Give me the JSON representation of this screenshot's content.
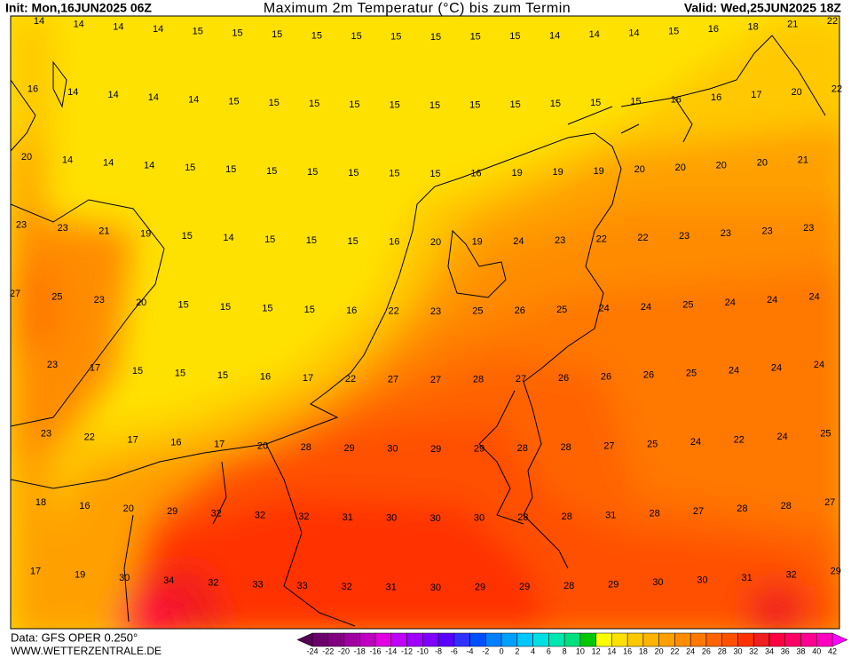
{
  "header": {
    "init": "Init: Mon,16JUN2025 06Z",
    "title": "Maximum 2m Temperatur (°C) bis zum Termin",
    "valid": "Valid: Wed,25JUN2025 18Z"
  },
  "map": {
    "labels": [
      [
        14,
        14,
        14,
        14,
        15,
        15,
        15,
        15,
        15,
        15,
        15,
        15,
        15,
        14,
        14,
        14,
        15,
        16,
        18,
        21,
        22
      ],
      [
        16,
        14,
        14,
        14,
        14,
        15,
        15,
        15,
        15,
        15,
        15,
        15,
        15,
        15,
        15,
        15,
        16,
        16,
        17,
        20,
        22
      ],
      [
        20,
        14,
        14,
        14,
        15,
        15,
        15,
        15,
        15,
        15,
        15,
        16,
        19,
        19,
        19,
        20,
        20,
        20,
        20,
        21
      ],
      [
        23,
        23,
        21,
        19,
        15,
        14,
        15,
        15,
        15,
        16,
        20,
        19,
        24,
        23,
        22,
        22,
        23,
        23,
        23,
        23
      ],
      [
        27,
        25,
        23,
        20,
        15,
        15,
        15,
        15,
        16,
        22,
        23,
        25,
        26,
        25,
        24,
        24,
        25,
        24,
        24,
        24
      ],
      [
        23,
        17,
        15,
        15,
        15,
        16,
        17,
        22,
        27,
        27,
        28,
        27,
        26,
        26,
        26,
        25,
        24,
        24,
        24
      ],
      [
        23,
        22,
        17,
        16,
        17,
        20,
        28,
        29,
        30,
        29,
        29,
        28,
        28,
        27,
        25,
        24,
        22,
        24,
        25
      ],
      [
        18,
        16,
        20,
        29,
        32,
        32,
        32,
        31,
        30,
        30,
        30,
        28,
        28,
        31,
        28,
        27,
        28,
        28,
        27
      ],
      [
        17,
        19,
        30,
        34,
        32,
        33,
        33,
        32,
        31,
        30,
        29,
        29,
        28,
        29,
        30,
        30,
        31,
        32,
        29
      ]
    ]
  },
  "colorbar": {
    "labels": [
      -24,
      -22,
      -20,
      -18,
      -16,
      -14,
      -12,
      -10,
      -8,
      -6,
      -4,
      -2,
      0,
      2,
      4,
      6,
      8,
      10,
      12,
      14,
      16,
      18,
      20,
      22,
      24,
      26,
      28,
      30,
      32,
      34,
      36,
      38,
      40,
      42
    ],
    "colors": [
      "#550055",
      "#6a006a",
      "#80007f",
      "#a000a0",
      "#c000c0",
      "#e000e0",
      "#c000ff",
      "#a000ff",
      "#8000ff",
      "#5a00ff",
      "#3030ff",
      "#0050ff",
      "#0080ff",
      "#00a0ff",
      "#00c8ff",
      "#00e0e0",
      "#00e8b0",
      "#00e080",
      "#00c800",
      "#ffff00",
      "#ffe100",
      "#ffc800",
      "#ffb400",
      "#ffa000",
      "#ff8c00",
      "#ff7800",
      "#ff6400",
      "#ff5000",
      "#ff3200",
      "#f01e1e",
      "#ff0040",
      "#ff0064",
      "#ff0090",
      "#ff00c0",
      "#ff00ff"
    ]
  },
  "footer": {
    "source": "Data: GFS OPER 0.250°",
    "site": "WWW.WETTERZENTRALE.DE"
  }
}
